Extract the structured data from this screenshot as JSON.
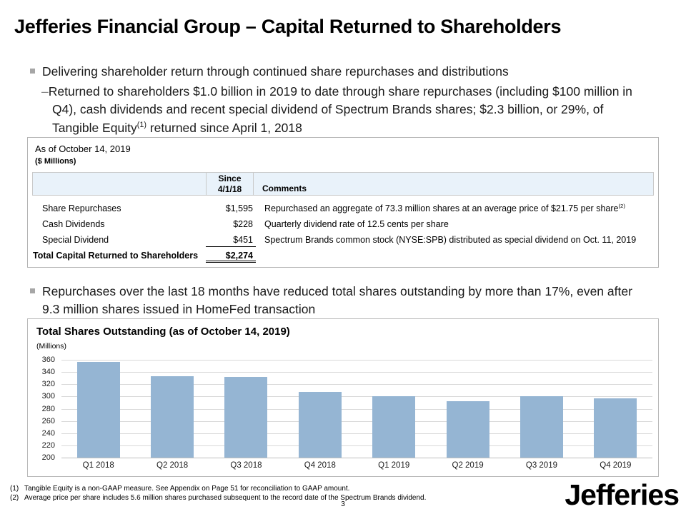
{
  "slide": {
    "title": "Jefferies Financial Group – Capital Returned to Shareholders",
    "page_number": "3",
    "logo_text": "Jefferies"
  },
  "bullets": {
    "bullet1": "Delivering shareholder return through continued share repurchases and distributions",
    "sub1_dash": "–",
    "sub1_before": "Returned to shareholders $1.0 billion in 2019 to date through share repurchases (including $100 million in Q4), cash dividends and recent special dividend of Spectrum Brands shares; $2.3 billion, or 29%, of Tangible Equity",
    "sub1_sup": "(1)",
    "sub1_after": " returned since April 1, 2018",
    "bullet2": "Repurchases over the last 18 months have reduced total shares outstanding by more than 17%, even after 9.3 million shares issued in HomeFed transaction"
  },
  "table": {
    "as_of": "As of October 14, 2019",
    "units": "($ Millions)",
    "value_header_line1": "Since",
    "value_header_line2": "4/1/18",
    "comments_header": "Comments",
    "rows": [
      {
        "label": "Share Repurchases",
        "value": "$1,595",
        "comment": "Repurchased an aggregate of 73.3 million shares at an average price of $21.75 per share",
        "comment_sup": "(2)",
        "bold": false,
        "underline": "none"
      },
      {
        "label": "Cash Dividends",
        "value": "$228",
        "comment": "Quarterly dividend rate of 12.5 cents per share",
        "comment_sup": "",
        "bold": false,
        "underline": "none"
      },
      {
        "label": "Special Dividend",
        "value": "$451",
        "comment": "Spectrum Brands common stock (NYSE:SPB) distributed as special dividend on Oct. 11, 2019",
        "comment_sup": "",
        "bold": false,
        "underline": "single"
      },
      {
        "label": "Total Capital Returned to Shareholders",
        "value": "$2,274",
        "comment": "",
        "comment_sup": "",
        "bold": true,
        "underline": "double"
      }
    ]
  },
  "chart_data": {
    "type": "bar",
    "title": "Total Shares Outstanding (as of October 14, 2019)",
    "units_label": "(Millions)",
    "categories": [
      "Q1 2018",
      "Q2 2018",
      "Q3 2018",
      "Q4 2018",
      "Q1 2019",
      "Q2 2019",
      "Q3 2019",
      "Q4 2019"
    ],
    "values": [
      357,
      333,
      332,
      307,
      300,
      292,
      301,
      297
    ],
    "xlabel": "",
    "ylabel": "Millions",
    "ylim": [
      200,
      360
    ],
    "yticks": [
      200,
      220,
      240,
      260,
      280,
      300,
      320,
      340,
      360
    ],
    "grid": true,
    "legend": "none",
    "bar_color": "#95b5d3"
  },
  "footnotes": [
    {
      "num": "(1)",
      "text": "Tangible Equity is a non-GAAP measure. See Appendix on Page 51 for reconciliation to GAAP amount."
    },
    {
      "num": "(2)",
      "text": "Average price per share includes 5.6 million shares purchased subsequent to the record date of the Spectrum Brands dividend."
    }
  ],
  "colors": {
    "bar": "#95b5d3",
    "table_header_bg": "#e9f2fa",
    "bullet_marker": "#a6a6a6",
    "box_border": "#b3b3b3",
    "gridline": "#d9d9d9"
  }
}
